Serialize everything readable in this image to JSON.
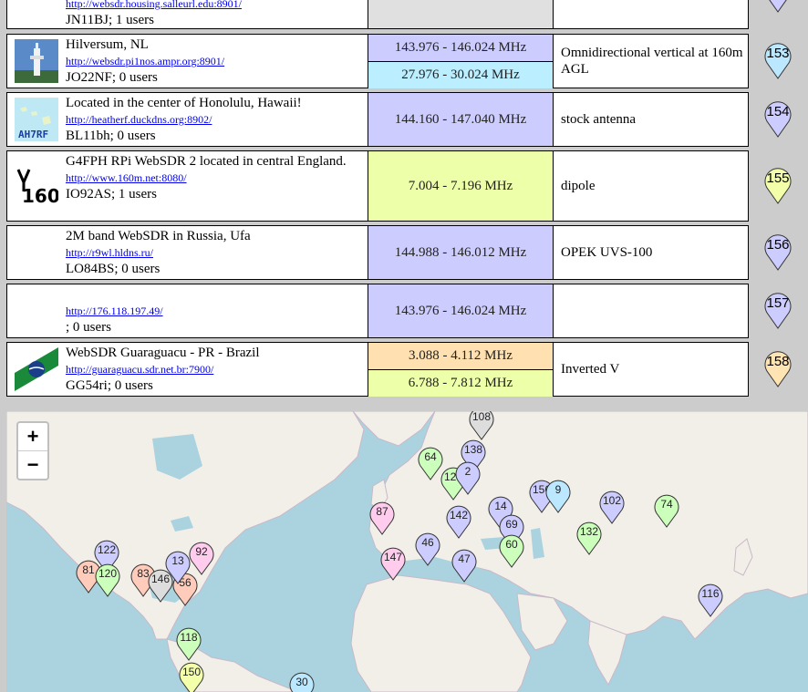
{
  "colors": {
    "vhf": "#ccccff",
    "hf_blue": "#bbeeff",
    "hf_yellow": "#eeffaa",
    "hf_orange": "#ffe0b0",
    "link": "#0000ee",
    "pin_purple": "#ccccff",
    "pin_blue": "#bbe8ff",
    "pin_yellow": "#f4ffaa",
    "pin_orange": "#ffe4b3",
    "pin_green": "#ccffbb",
    "pin_pink": "#ffccee",
    "pin_salmon": "#ffccbb",
    "pin_gray": "#dddddd"
  },
  "top_row": {
    "url": "http://websdr.housing.salleurl.edu:8901/",
    "meta": "JN11BJ; 1 users"
  },
  "rows": [
    {
      "logo": "lighthouse-tower-photo",
      "title": "Hilversum, NL",
      "url": "http://websdr.pi1nos.ampr.org:8901/",
      "meta": "JO22NF; 0 users",
      "bands": [
        {
          "label": "143.976 - 146.024 MHz",
          "color": "#ccccff"
        },
        {
          "label": "27.976 - 30.024 MHz",
          "color": "#bbeeff"
        }
      ],
      "antenna": "Omnidirectional vertical at 160m AGL",
      "number": "153",
      "pin_color": "#bbe8ff"
    },
    {
      "logo": "hawaii-map-logo",
      "logo_text": "AH7RF",
      "title": "Located in the center of Honolulu, Hawaii!",
      "url": "http://heatherf.duckdns.org:8902/",
      "meta": "BL11bh; 0 users",
      "bands": [
        {
          "label": "144.160 - 147.040 MHz",
          "color": "#ccccff"
        }
      ],
      "antenna": "stock antenna",
      "number": "154",
      "pin_color": "#ccccff"
    },
    {
      "logo": "antenna-160-logo",
      "logo_text": "160",
      "title": "G4FPH RPi WebSDR 2 located in central England.",
      "url": "http://www.160m.net:8080/",
      "meta": "IO92AS; 1 users",
      "bands": [
        {
          "label": "7.004 - 7.196 MHz",
          "color": "#eeffaa"
        }
      ],
      "antenna": "dipole",
      "number": "155",
      "pin_color": "#f4ffaa"
    },
    {
      "logo": "",
      "title": "2M band WebSDR in Russia, Ufa",
      "url": "http://r9wl.hldns.ru/",
      "meta": "LO84BS; 0 users",
      "bands": [
        {
          "label": "144.988 - 146.012 MHz",
          "color": "#ccccff"
        }
      ],
      "antenna": "OPEK UVS-100",
      "number": "156",
      "pin_color": "#ccccff"
    },
    {
      "logo": "",
      "title": "",
      "url": "http://176.118.197.49/",
      "meta": "; 0 users",
      "bands": [
        {
          "label": "143.976 - 146.024 MHz",
          "color": "#ccccff"
        }
      ],
      "antenna": "",
      "number": "157",
      "pin_color": "#ccccff"
    },
    {
      "logo": "brazil-state-flag",
      "title": "WebSDR Guaraguacu - PR - Brazil",
      "url": "http://guaraguacu.sdr.net.br:7900/",
      "meta": "GG54ri; 0 users",
      "bands": [
        {
          "label": "3.088 - 4.112 MHz",
          "color": "#ffe0b0"
        },
        {
          "label": "6.788 - 7.812 MHz",
          "color": "#eeffaa"
        }
      ],
      "antenna": "Inverted V",
      "number": "158",
      "pin_color": "#ffe4b3"
    }
  ],
  "map": {
    "zoom_in": "+",
    "zoom_out": "−",
    "markers": [
      {
        "label": "64",
        "color": "#ccffbb"
      },
      {
        "label": "138",
        "color": "#ccccff"
      },
      {
        "label": "127",
        "color": "#ccffbb"
      },
      {
        "label": "2",
        "color": "#ccccff"
      },
      {
        "label": "156",
        "color": "#ccccff"
      },
      {
        "label": "9",
        "color": "#bbe8ff"
      },
      {
        "label": "102",
        "color": "#ccccff"
      },
      {
        "label": "74",
        "color": "#ccffbb"
      },
      {
        "label": "87",
        "color": "#ffccee"
      },
      {
        "label": "142",
        "color": "#ccccff"
      },
      {
        "label": "14",
        "color": "#ccccff"
      },
      {
        "label": "69",
        "color": "#ccccff"
      },
      {
        "label": "132",
        "color": "#ccffbb"
      },
      {
        "label": "60",
        "color": "#ccffbb"
      },
      {
        "label": "46",
        "color": "#ccccff"
      },
      {
        "label": "147",
        "color": "#ffccee"
      },
      {
        "label": "47",
        "color": "#ccccff"
      },
      {
        "label": "116",
        "color": "#ccccff"
      },
      {
        "label": "122",
        "color": "#ccccff"
      },
      {
        "label": "92",
        "color": "#ffccee"
      },
      {
        "label": "81",
        "color": "#ffccbb"
      },
      {
        "label": "120",
        "color": "#ccffbb"
      },
      {
        "label": "83",
        "color": "#ffccbb"
      },
      {
        "label": "146",
        "color": "#dddddd"
      },
      {
        "label": "56",
        "color": "#ffccbb"
      },
      {
        "label": "13",
        "color": "#ccccff"
      },
      {
        "label": "118",
        "color": "#ccffbb"
      },
      {
        "label": "150",
        "color": "#f4ffaa"
      },
      {
        "label": "30",
        "color": "#bbe8ff"
      },
      {
        "label": "108",
        "color": "#dddddd"
      }
    ]
  }
}
